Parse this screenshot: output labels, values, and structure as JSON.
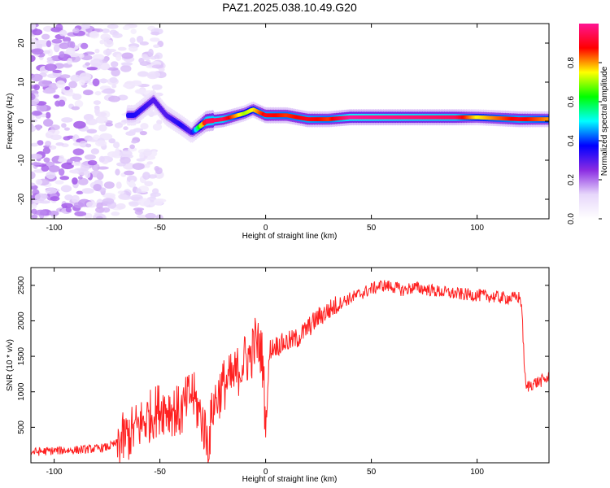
{
  "title": "PAZ1.2025.038.10.49.G20",
  "chart_data": [
    {
      "type": "heatmap",
      "xlabel": "Height of straight line (km)",
      "ylabel": "Frequency (Hz)",
      "xlim": [
        -111,
        134
      ],
      "ylim": [
        -25,
        25
      ],
      "xticks": [
        -100,
        -50,
        0,
        50,
        100
      ],
      "yticks": [
        -20,
        -10,
        0,
        10,
        20
      ],
      "colorbar": {
        "label": "Normalized spectral amplitude",
        "range": [
          0,
          1
        ],
        "ticks": [
          "0.0",
          "0.2",
          "0.4",
          "0.6",
          "0.8"
        ],
        "colors": [
          "#ffffff",
          "#e7d7fb",
          "#8a2be2",
          "#0000ff",
          "#00ffff",
          "#00ff00",
          "#ffff00",
          "#ff0000",
          "#ff1493"
        ]
      },
      "ridge": {
        "description_points": [
          {
            "x": -62,
            "freq": 1.5,
            "amp": 0.35
          },
          {
            "x": -53,
            "freq": 5.5,
            "amp": 0.3
          },
          {
            "x": -47,
            "freq": 1.5,
            "amp": 0.3
          },
          {
            "x": -40,
            "freq": -1.0,
            "amp": 0.35
          },
          {
            "x": -35,
            "freq": -3.0,
            "amp": 0.3
          },
          {
            "x": -28,
            "freq": 0.0,
            "amp": 0.95
          },
          {
            "x": -20,
            "freq": 0.5,
            "amp": 0.95
          },
          {
            "x": -10,
            "freq": 2.0,
            "amp": 0.7
          },
          {
            "x": -6,
            "freq": 3.0,
            "amp": 0.75
          },
          {
            "x": 0,
            "freq": 1.5,
            "amp": 0.9
          },
          {
            "x": 10,
            "freq": 1.5,
            "amp": 0.85
          },
          {
            "x": 20,
            "freq": 0.5,
            "amp": 0.9
          },
          {
            "x": 30,
            "freq": 0.5,
            "amp": 0.85
          },
          {
            "x": 40,
            "freq": 1.0,
            "amp": 1.0
          },
          {
            "x": 90,
            "freq": 1.0,
            "amp": 0.95
          },
          {
            "x": 100,
            "freq": 1.0,
            "amp": 0.75
          },
          {
            "x": 120,
            "freq": 0.5,
            "amp": 0.9
          },
          {
            "x": 134,
            "freq": 0.5,
            "amp": 0.8
          }
        ]
      }
    },
    {
      "type": "line",
      "xlabel": "Height of straight line (km)",
      "ylabel": "SNR (10 * v/v)",
      "xlim": [
        -111,
        134
      ],
      "ylim": [
        0,
        2750
      ],
      "xticks": [
        -100,
        -50,
        0,
        50,
        100
      ],
      "yticks": [
        500,
        1000,
        1500,
        2000,
        2500
      ],
      "color": "#ff2020",
      "series": [
        {
          "x": [
            -111,
            -100,
            -90,
            -80,
            -75,
            -70,
            -65,
            -60,
            -55,
            -50,
            -45,
            -40,
            -35,
            -30,
            -27,
            -25,
            -20,
            -15,
            -10,
            -7,
            -5,
            -2,
            -1,
            0,
            2,
            5,
            10,
            15,
            20,
            25,
            30,
            35,
            40,
            45,
            50,
            55,
            60,
            65,
            70,
            75,
            80,
            85,
            90,
            95,
            100,
            105,
            110,
            115,
            120,
            121,
            122,
            123,
            125,
            130,
            134
          ],
          "y": [
            150,
            170,
            180,
            200,
            220,
            280,
            380,
            520,
            650,
            780,
            760,
            700,
            1000,
            600,
            250,
            800,
            1100,
            1200,
            1450,
            1500,
            1700,
            1600,
            1200,
            500,
            1600,
            1650,
            1700,
            1750,
            1900,
            2050,
            2150,
            2250,
            2320,
            2380,
            2450,
            2500,
            2480,
            2430,
            2470,
            2450,
            2420,
            2400,
            2380,
            2370,
            2360,
            2350,
            2330,
            2320,
            2330,
            2250,
            1600,
            1050,
            1100,
            1150,
            1200
          ]
        }
      ]
    }
  ]
}
